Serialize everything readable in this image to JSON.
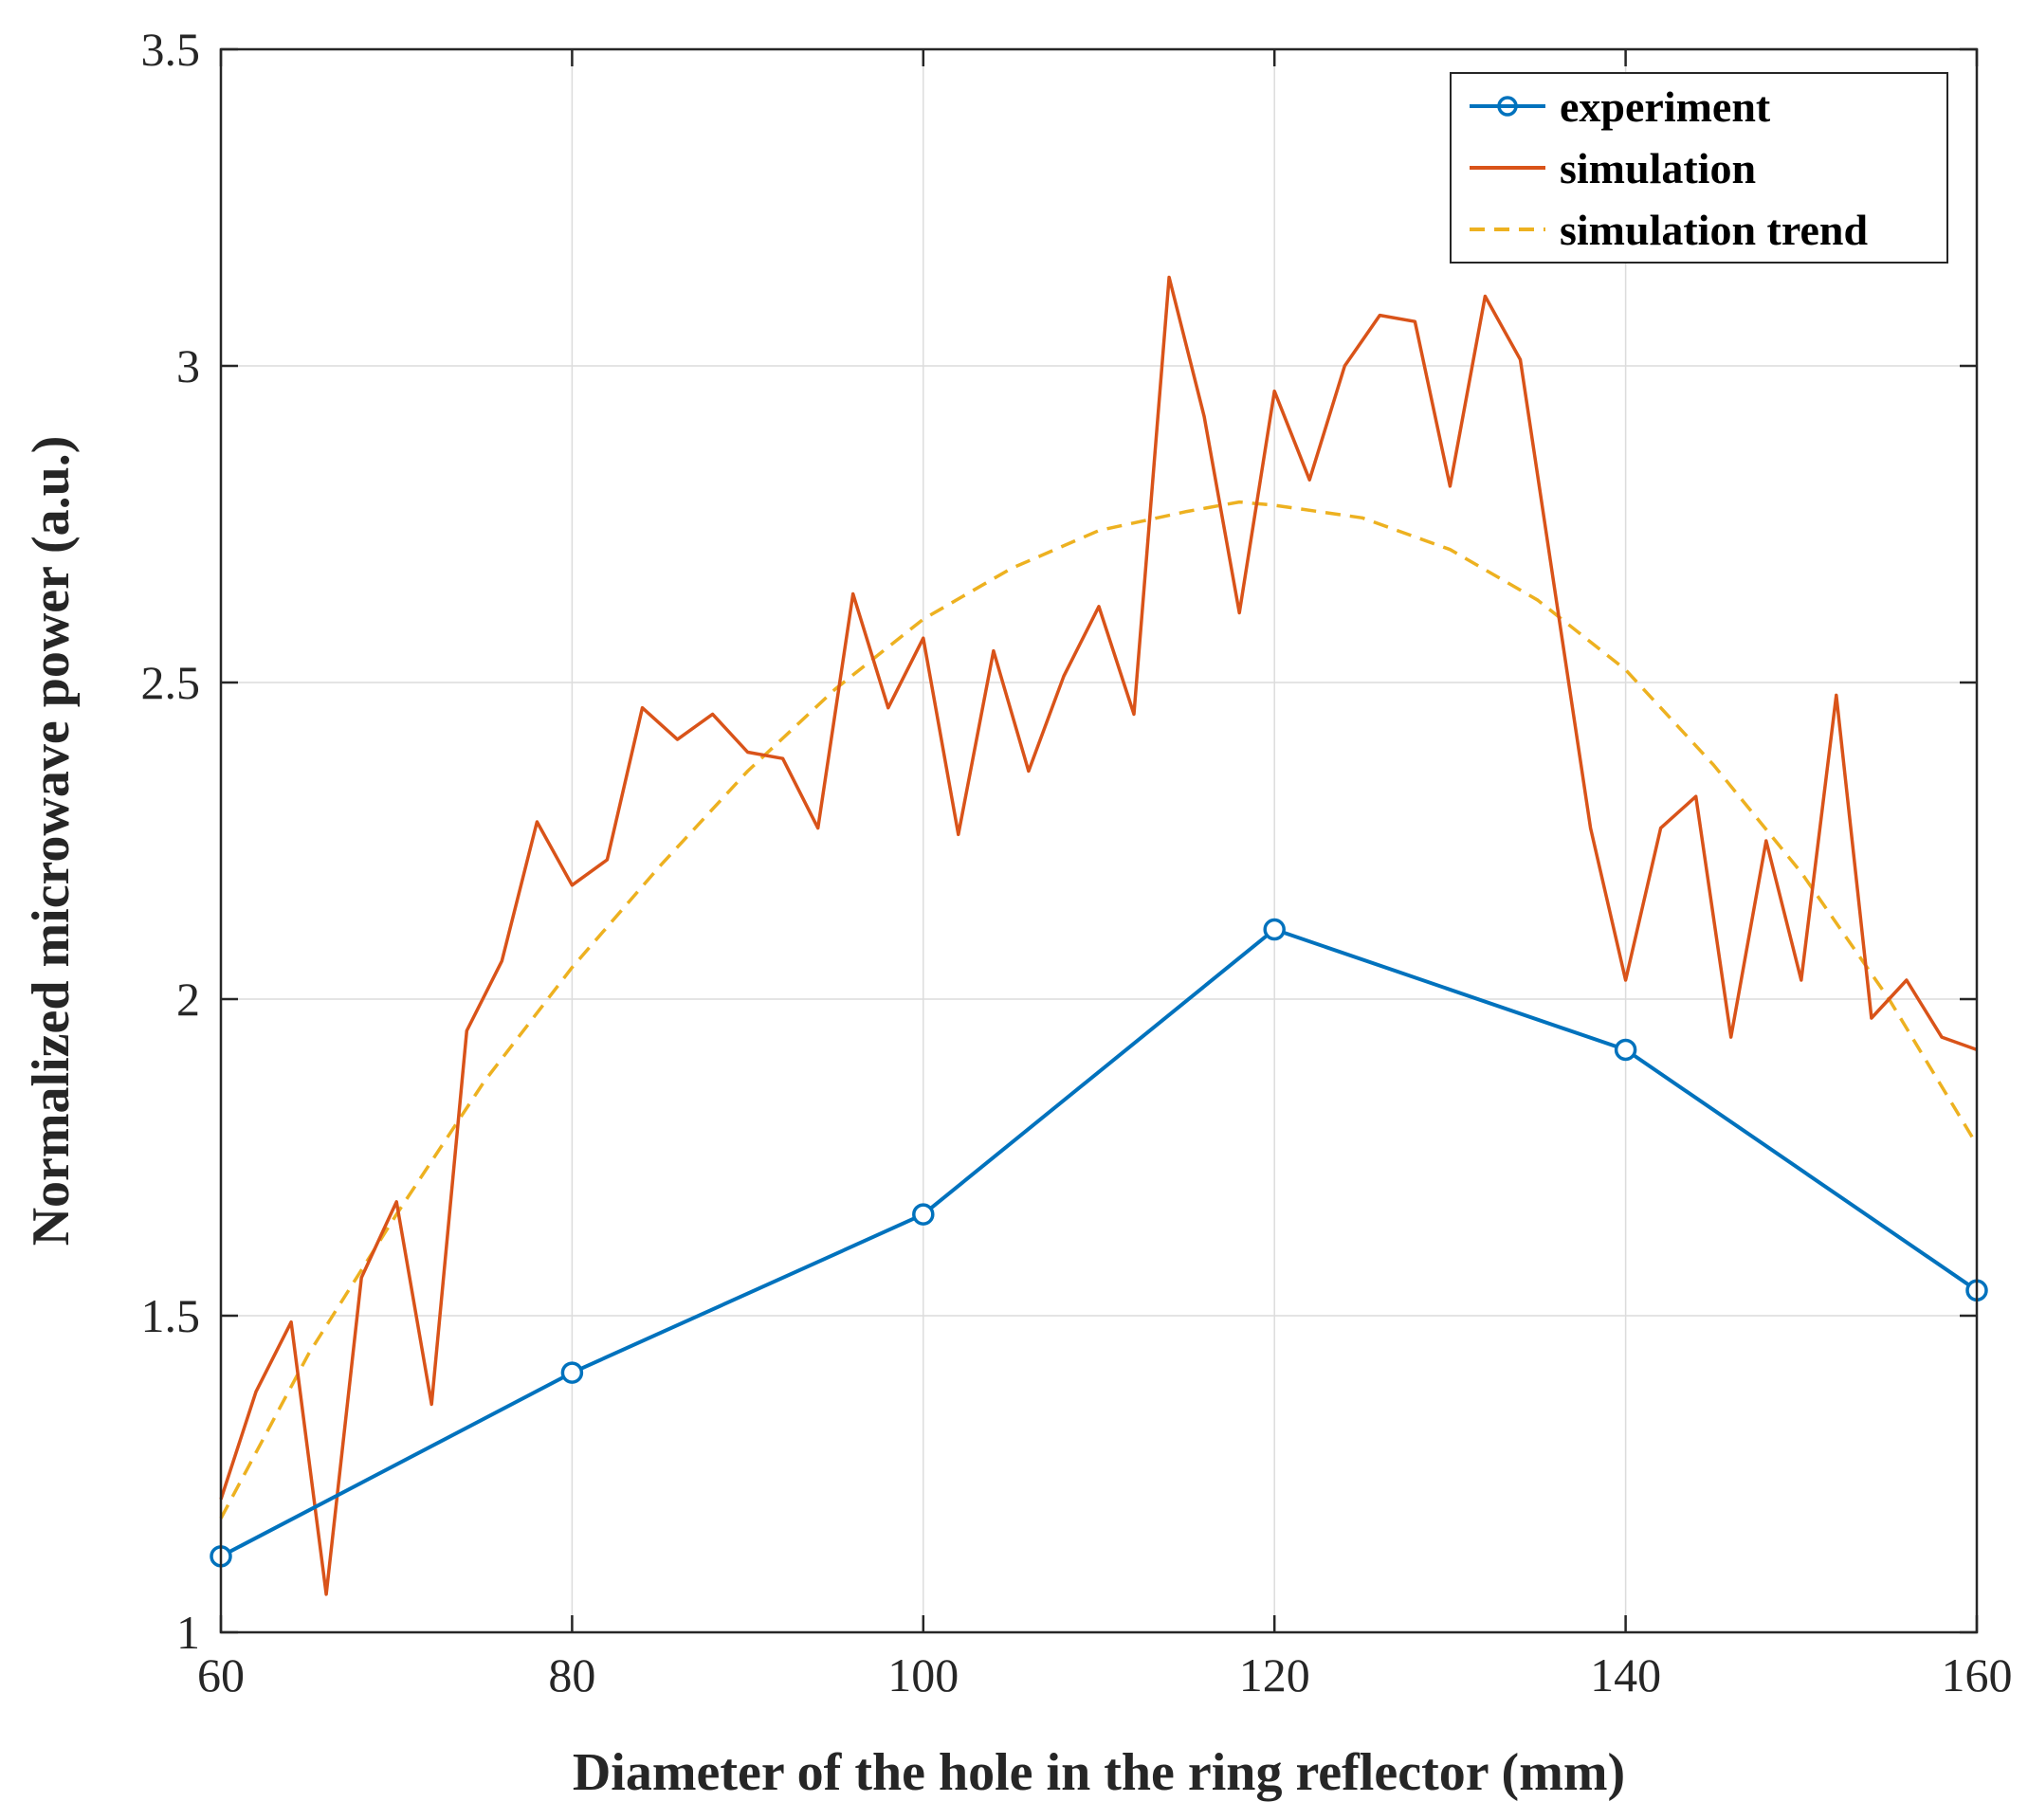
{
  "chart_data": {
    "type": "line",
    "title": "",
    "xlabel": "Diameter  of the  hole  in the ring reflector (mm)",
    "ylabel": "Normalized  microwave power (a.u.)",
    "xlim": [
      60,
      160
    ],
    "ylim": [
      1,
      3.5
    ],
    "xticks": [
      60,
      80,
      100,
      120,
      140,
      160
    ],
    "xtick_labels": [
      "60",
      "80",
      "100",
      "120",
      "140",
      "160"
    ],
    "yticks": [
      1,
      1.5,
      2,
      2.5,
      3,
      3.5
    ],
    "ytick_labels": [
      "1",
      "1.5",
      "2",
      "2.5",
      "3",
      "3.5"
    ],
    "grid": true,
    "legend_position": "top-right",
    "series": [
      {
        "name": "experiment",
        "color": "#0072BD",
        "style": "solid-with-circle-markers",
        "x": [
          60,
          80,
          100,
          120,
          140,
          160
        ],
        "y": [
          1.12,
          1.41,
          1.66,
          2.11,
          1.92,
          1.54
        ]
      },
      {
        "name": "simulation",
        "color": "#D95319",
        "style": "solid",
        "x": [
          60,
          62,
          64,
          66,
          68,
          70,
          72,
          74,
          76,
          78,
          80,
          82,
          84,
          86,
          88,
          90,
          92,
          94,
          96,
          98,
          100,
          102,
          104,
          106,
          108,
          110,
          112,
          114,
          116,
          118,
          120,
          122,
          124,
          126,
          128,
          130,
          132,
          134,
          136,
          138,
          140,
          142,
          144,
          146,
          148,
          150,
          152,
          154,
          156,
          158,
          160
        ],
        "y": [
          1.21,
          1.38,
          1.49,
          1.06,
          1.56,
          1.68,
          1.36,
          1.95,
          2.06,
          2.28,
          2.18,
          2.22,
          2.46,
          2.41,
          2.45,
          2.39,
          2.38,
          2.27,
          2.64,
          2.46,
          2.57,
          2.26,
          2.55,
          2.36,
          2.51,
          2.62,
          2.45,
          3.14,
          2.92,
          2.61,
          2.96,
          2.82,
          3.0,
          3.08,
          3.07,
          2.81,
          3.11,
          3.01,
          2.64,
          2.27,
          2.03,
          2.27,
          2.32,
          1.94,
          2.25,
          2.03,
          2.48,
          1.97,
          2.03,
          1.94,
          1.92
        ]
      },
      {
        "name": "simulation trend",
        "color": "#EDB120",
        "style": "dashed",
        "x": [
          60,
          65,
          70,
          75,
          80,
          85,
          90,
          95,
          100,
          105,
          110,
          115,
          118,
          120,
          125,
          130,
          135,
          140,
          145,
          150,
          155,
          160
        ],
        "y": [
          1.18,
          1.44,
          1.66,
          1.87,
          2.05,
          2.21,
          2.36,
          2.49,
          2.6,
          2.68,
          2.74,
          2.77,
          2.785,
          2.78,
          2.76,
          2.71,
          2.63,
          2.52,
          2.37,
          2.2,
          2.0,
          1.77
        ]
      }
    ]
  }
}
